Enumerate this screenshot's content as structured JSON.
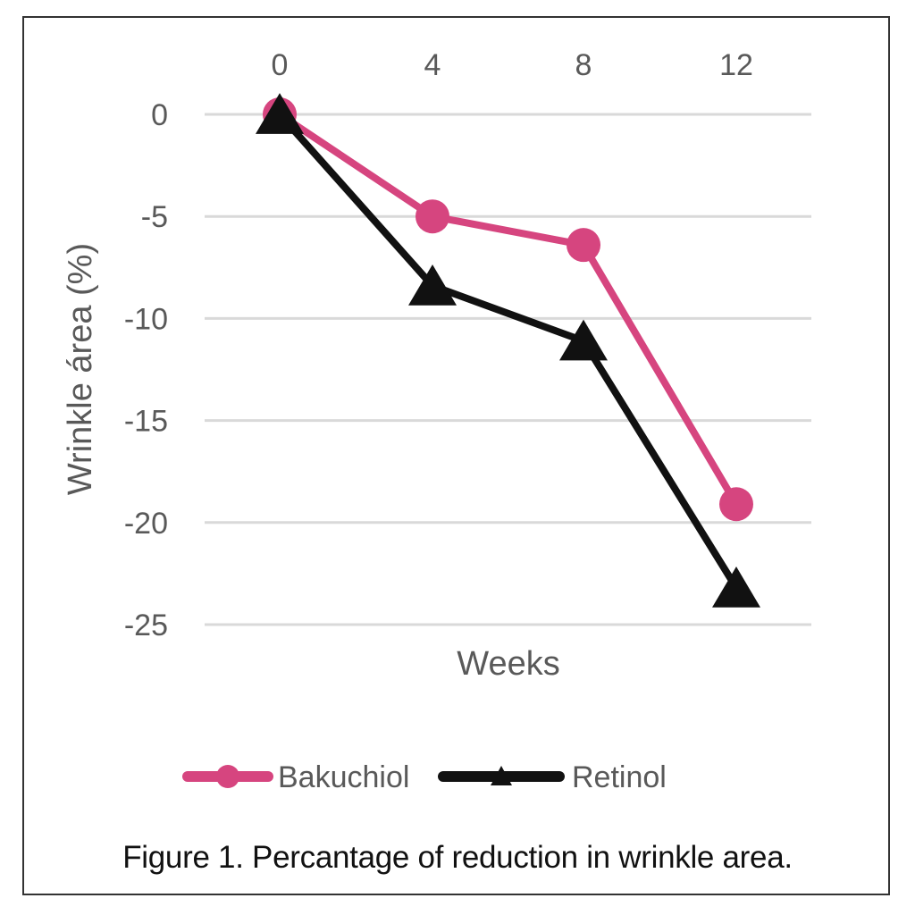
{
  "caption": "Figure 1. Percantage of reduction in wrinkle area.",
  "chart_data": {
    "type": "line",
    "title": "",
    "xlabel": "Weeks",
    "ylabel": "Wrinkle área  (%)",
    "x": [
      0,
      4,
      8,
      12
    ],
    "x_tick_labels": [
      "0",
      "4",
      "8",
      "12"
    ],
    "x_axis_position": "top",
    "y_ticks": [
      0,
      -5,
      -10,
      -15,
      -20,
      -25
    ],
    "y_tick_labels": [
      "0",
      "-5",
      "-10",
      "-15",
      "-20",
      "-25"
    ],
    "ylim": [
      -25,
      0
    ],
    "grid": true,
    "legend_position": "bottom",
    "series": [
      {
        "name": "Bakuchiol",
        "marker": "circle",
        "color": "#d6457f",
        "values": [
          0,
          -5.0,
          -6.4,
          -19.1
        ]
      },
      {
        "name": "Retinol",
        "marker": "triangle",
        "color": "#111111",
        "values": [
          0,
          -8.4,
          -11.1,
          -23.2
        ]
      }
    ]
  }
}
